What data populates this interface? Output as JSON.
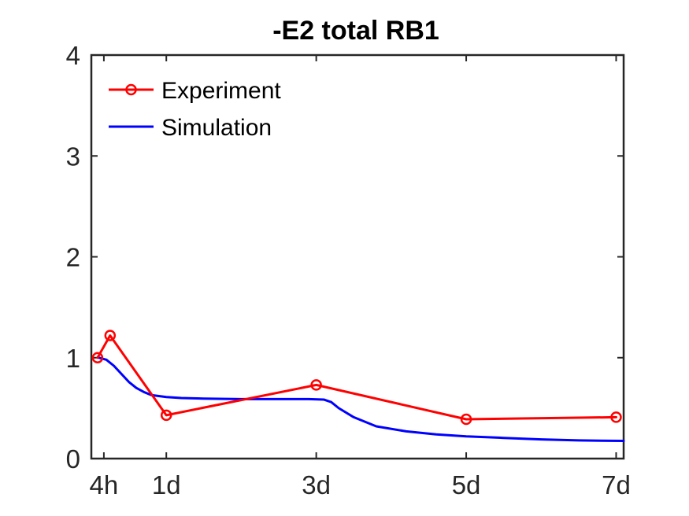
{
  "chart_data": {
    "type": "line",
    "title": "-E2 total RB1",
    "xlabel": "",
    "ylabel": "",
    "xlim": [
      0,
      7.1
    ],
    "ylim": [
      0,
      4
    ],
    "x_ticks": [
      {
        "value": 0.167,
        "label": "4h"
      },
      {
        "value": 1,
        "label": "1d"
      },
      {
        "value": 3,
        "label": "3d"
      },
      {
        "value": 5,
        "label": "5d"
      },
      {
        "value": 7,
        "label": "7d"
      }
    ],
    "y_ticks": [
      {
        "value": 0,
        "label": "0"
      },
      {
        "value": 1,
        "label": "1"
      },
      {
        "value": 2,
        "label": "2"
      },
      {
        "value": 3,
        "label": "3"
      },
      {
        "value": 4,
        "label": "4"
      }
    ],
    "grid": false,
    "legend_position": "top-left",
    "series": [
      {
        "name": "Experiment",
        "color": "#ff0000",
        "marker": "circle",
        "x": [
          0.083,
          0.25,
          1,
          3,
          5,
          7
        ],
        "y": [
          1.0,
          1.22,
          0.43,
          0.73,
          0.39,
          0.41
        ]
      },
      {
        "name": "Simulation",
        "color": "#0000ff",
        "marker": "none",
        "x": [
          0.1,
          0.2,
          0.3,
          0.4,
          0.5,
          0.6,
          0.7,
          0.8,
          1.0,
          1.2,
          1.5,
          2.0,
          2.5,
          2.9,
          3.1,
          3.2,
          3.3,
          3.5,
          3.8,
          4.2,
          4.6,
          5.0,
          5.5,
          6.0,
          6.5,
          7.1
        ],
        "y": [
          1.0,
          0.98,
          0.92,
          0.84,
          0.76,
          0.7,
          0.66,
          0.63,
          0.61,
          0.6,
          0.595,
          0.59,
          0.59,
          0.59,
          0.585,
          0.56,
          0.5,
          0.41,
          0.32,
          0.27,
          0.24,
          0.22,
          0.205,
          0.19,
          0.18,
          0.175
        ]
      }
    ]
  }
}
